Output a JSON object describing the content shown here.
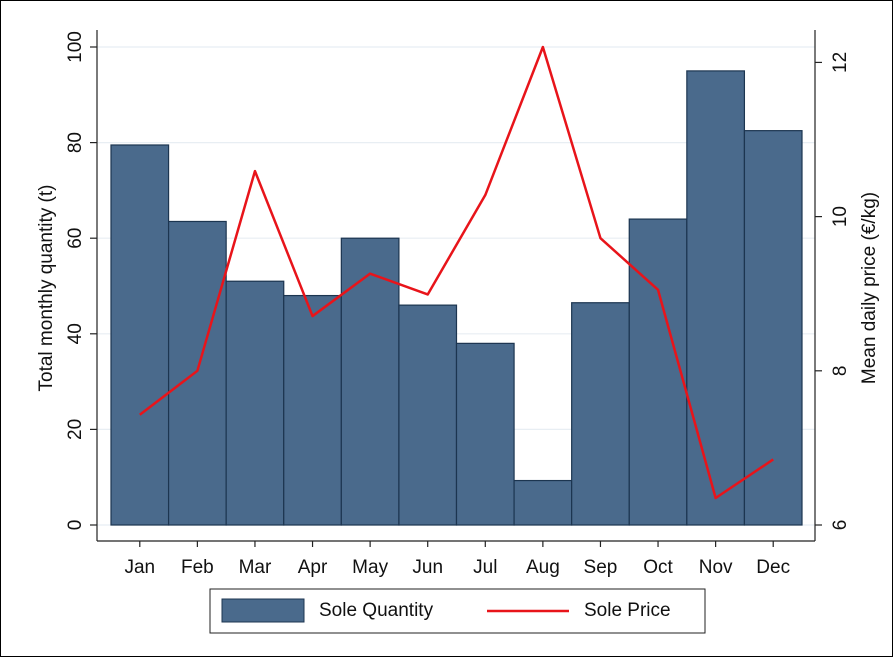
{
  "chart_data": {
    "type": "bar",
    "categories": [
      "Jan",
      "Feb",
      "Mar",
      "Apr",
      "May",
      "Jun",
      "Jul",
      "Aug",
      "Sep",
      "Oct",
      "Nov",
      "Dec"
    ],
    "series": [
      {
        "name": "Sole Quantity",
        "type": "bar",
        "color": "#4a6a8c",
        "values": [
          79.5,
          63.5,
          51,
          48,
          60,
          46,
          38,
          9.3,
          46.5,
          64,
          95,
          82.5
        ]
      },
      {
        "name": "Sole Price",
        "type": "line",
        "axis": "y2",
        "color": "#e8141a",
        "values": [
          7.43,
          8.0,
          10.59,
          8.71,
          9.26,
          8.99,
          10.28,
          12.2,
          9.72,
          9.05,
          6.35,
          6.85
        ]
      }
    ],
    "y_label": "Total monthly quantity (t)",
    "y2_label": "Mean daily price (€/kg)",
    "ylim": [
      0,
      100
    ],
    "yticks": [
      0,
      20,
      40,
      60,
      80,
      100
    ],
    "y2lim": [
      6,
      12.2
    ],
    "y2ticks": [
      6,
      8,
      10,
      12
    ],
    "grid": true,
    "legend": "bottom"
  }
}
